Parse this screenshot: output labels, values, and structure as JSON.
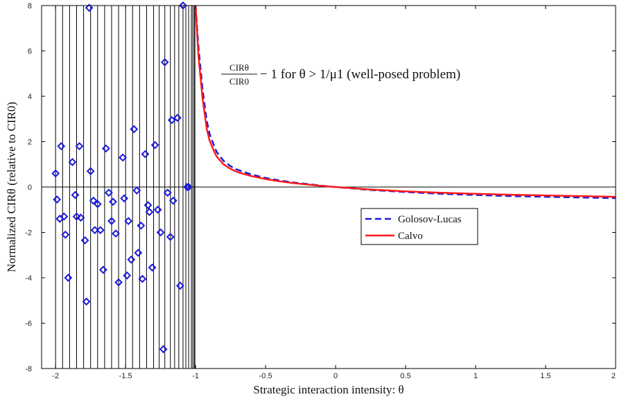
{
  "chart_data": {
    "type": "line",
    "xlabel": "Strategic interaction intensity: θ",
    "ylabel": "Normalized CIRθ (relative to CIR0)",
    "annotation": {
      "frac_num": "CIRθ",
      "frac_den": "CIR0",
      "text": "− 1 for θ > 1/μ1 (well-posed problem)"
    },
    "xlim": [
      -2.1,
      2
    ],
    "ylim": [
      -8,
      8
    ],
    "x_ticks": [
      -2,
      -1.5,
      -1,
      -0.5,
      0,
      0.5,
      1,
      1.5,
      2
    ],
    "x_tick_labels": [
      "-2",
      "-1.5",
      "-1",
      "-0.5",
      "0",
      "0.5",
      "1",
      "1.5",
      "2"
    ],
    "y_ticks": [
      -8,
      -6,
      -4,
      -2,
      0,
      2,
      4,
      6,
      8
    ],
    "y_tick_labels": [
      "-8",
      "-6",
      "-4",
      "-2",
      "0",
      "2",
      "4",
      "6",
      "8"
    ],
    "grid": false,
    "legend_position": "center-right",
    "series": [
      {
        "name": "Golosov-Lucas",
        "style": "dashed",
        "color": "#1a1adb",
        "x": [
          -1.0,
          -0.98,
          -0.95,
          -0.92,
          -0.9,
          -0.87,
          -0.85,
          -0.8,
          -0.75,
          -0.7,
          -0.6,
          -0.5,
          -0.4,
          -0.3,
          -0.2,
          -0.1,
          0,
          0.25,
          0.5,
          0.75,
          1.0,
          1.25,
          1.5,
          1.75,
          2.0
        ],
        "values": [
          8.0,
          6.2,
          4.3,
          2.9,
          2.35,
          1.85,
          1.55,
          1.15,
          0.92,
          0.76,
          0.55,
          0.4,
          0.29,
          0.2,
          0.13,
          0.06,
          0.0,
          -0.13,
          -0.22,
          -0.3,
          -0.35,
          -0.4,
          -0.43,
          -0.46,
          -0.49
        ]
      },
      {
        "name": "Calvo",
        "style": "solid",
        "color": "#ff1a1a",
        "x": [
          -1.0,
          -0.98,
          -0.95,
          -0.92,
          -0.9,
          -0.87,
          -0.85,
          -0.8,
          -0.75,
          -0.7,
          -0.6,
          -0.5,
          -0.4,
          -0.3,
          -0.2,
          -0.1,
          0,
          0.25,
          0.5,
          0.75,
          1.0,
          1.25,
          1.5,
          1.75,
          2.0
        ],
        "values": [
          8.0,
          5.8,
          3.9,
          2.55,
          2.05,
          1.6,
          1.35,
          1.0,
          0.8,
          0.66,
          0.48,
          0.35,
          0.25,
          0.17,
          0.11,
          0.05,
          0.0,
          -0.11,
          -0.19,
          -0.25,
          -0.3,
          -0.34,
          -0.37,
          -0.4,
          -0.43
        ]
      }
    ],
    "scatter_points": {
      "marker": "diamond",
      "color": "#1a1adb",
      "x": [
        -2.0,
        -1.99,
        -1.97,
        -1.96,
        -1.94,
        -1.93,
        -1.91,
        -1.88,
        -1.86,
        -1.85,
        -1.83,
        -1.82,
        -1.79,
        -1.78,
        -1.76,
        -1.75,
        -1.73,
        -1.72,
        -1.7,
        -1.68,
        -1.66,
        -1.64,
        -1.62,
        -1.6,
        -1.59,
        -1.57,
        -1.55,
        -1.52,
        -1.51,
        -1.49,
        -1.48,
        -1.46,
        -1.44,
        -1.42,
        -1.41,
        -1.39,
        -1.38,
        -1.36,
        -1.34,
        -1.33,
        -1.31,
        -1.29,
        -1.27,
        -1.25,
        -1.23,
        -1.22,
        -1.2,
        -1.18,
        -1.17,
        -1.16,
        -1.13,
        -1.11,
        -1.09,
        -1.06,
        -1.05
      ],
      "values": [
        0.6,
        -0.55,
        -1.4,
        1.8,
        -1.3,
        -2.1,
        -4.0,
        1.1,
        -0.35,
        -1.3,
        1.8,
        -1.35,
        -2.35,
        -5.05,
        7.9,
        0.7,
        -0.6,
        -1.9,
        -0.75,
        -1.9,
        -3.65,
        1.7,
        -0.25,
        -1.5,
        -0.65,
        -2.05,
        -4.2,
        1.3,
        -0.5,
        -3.9,
        -1.5,
        -3.2,
        2.55,
        -0.15,
        -2.9,
        -1.7,
        -4.05,
        1.45,
        -0.8,
        -1.1,
        -3.55,
        1.85,
        -1.0,
        -2.0,
        -7.15,
        5.5,
        -0.25,
        -2.2,
        2.95,
        -0.6,
        3.05,
        -4.35,
        8.0,
        0.0,
        0.0
      ]
    },
    "vertical_lines_x": [
      -2.0,
      -1.95,
      -1.9,
      -1.85,
      -1.8,
      -1.75,
      -1.7,
      -1.65,
      -1.6,
      -1.55,
      -1.5,
      -1.45,
      -1.4,
      -1.35,
      -1.3,
      -1.26,
      -1.22,
      -1.18,
      -1.15,
      -1.12,
      -1.09,
      -1.07,
      -1.05,
      -1.03,
      -1.02,
      -1.01,
      -1.005
    ],
    "horizontal_line_y": 0
  }
}
